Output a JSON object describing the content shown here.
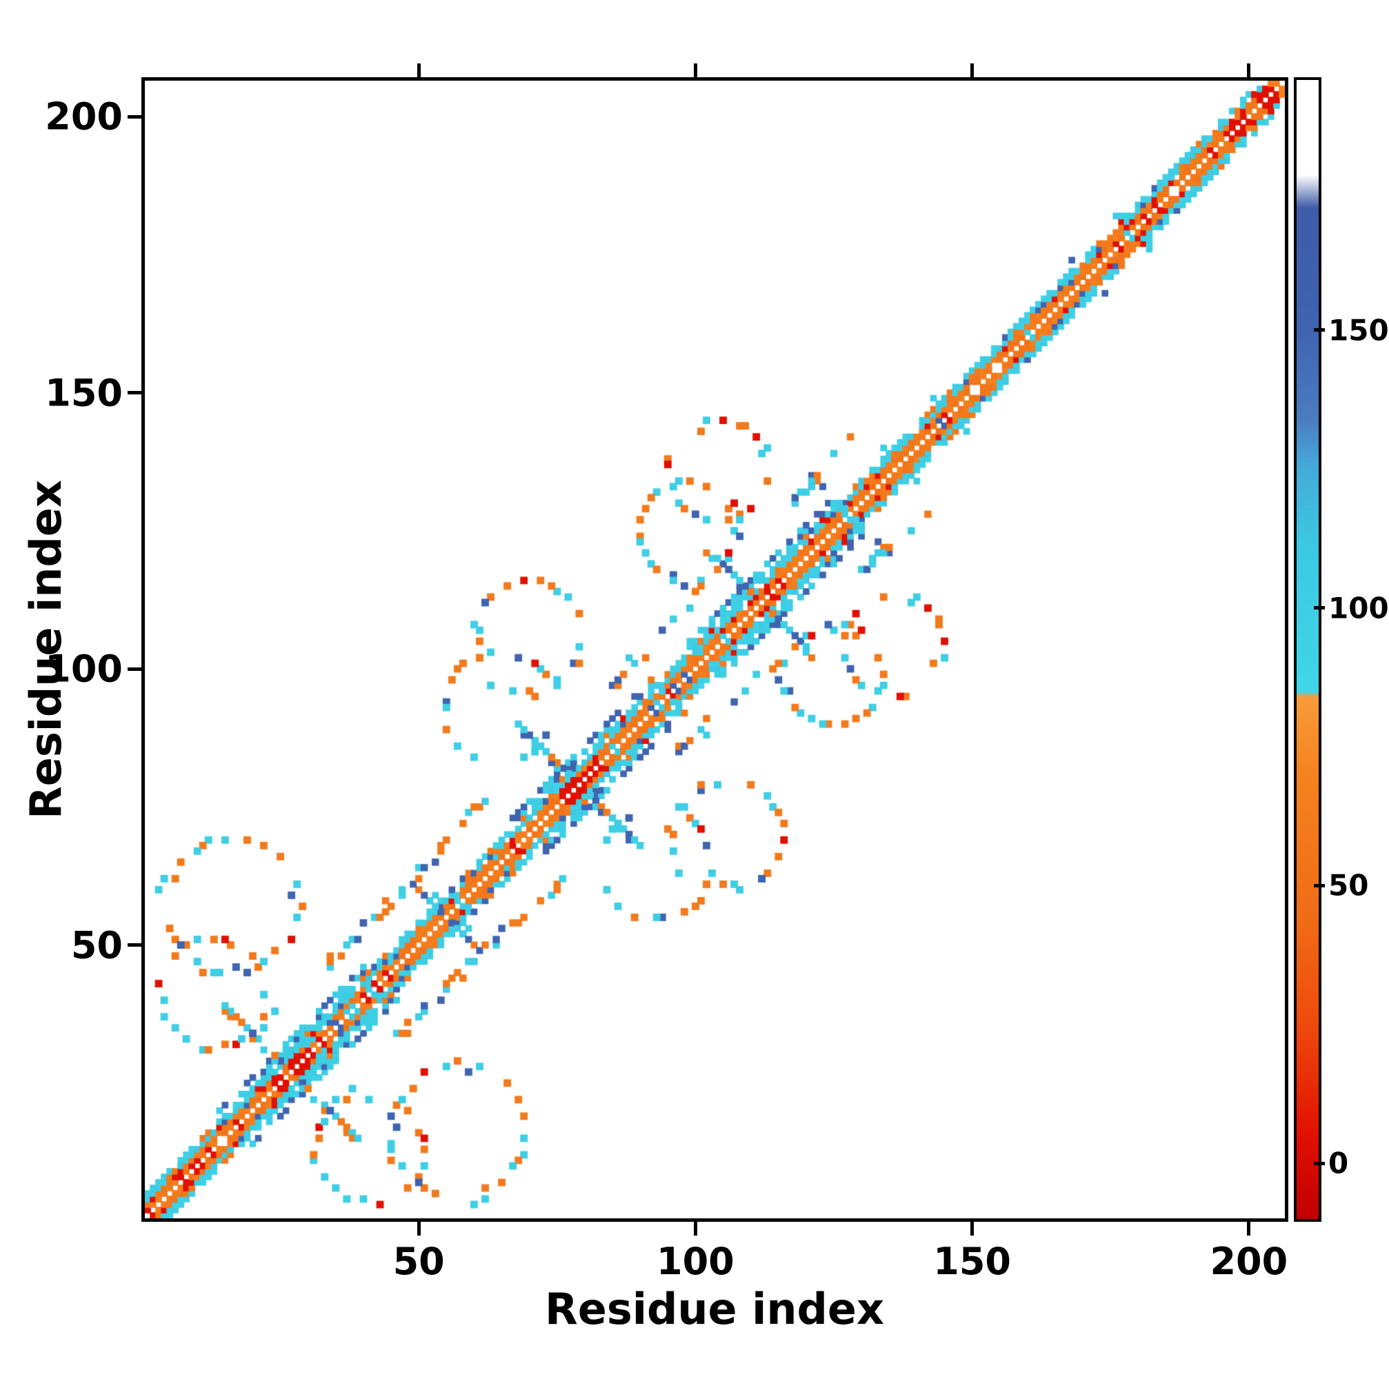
{
  "figure": {
    "background": "#ffffff",
    "frame_color": "#000000"
  },
  "chart_data": {
    "type": "heatmap",
    "subtype": "protein-contact-map",
    "title": "",
    "xlabel": "Residue index",
    "ylabel": "Residue index",
    "n_residues": 206,
    "xlim": [
      1,
      206
    ],
    "ylim": [
      1,
      206
    ],
    "xticks": [
      50,
      100,
      150,
      200
    ],
    "yticks": [
      50,
      100,
      150,
      200
    ],
    "grid": false,
    "symmetric": true,
    "colorbar": {
      "position": "right",
      "ticks": [
        0,
        50,
        100,
        150
      ],
      "vmin": -10,
      "vmax": 195,
      "stops": [
        [
          -10,
          "#c00000"
        ],
        [
          5,
          "#e01000"
        ],
        [
          25,
          "#ee4a0c"
        ],
        [
          45,
          "#f06d17"
        ],
        [
          70,
          "#f5821f"
        ],
        [
          84,
          "#f89b3a"
        ],
        [
          85,
          "#40d6e8"
        ],
        [
          112,
          "#3cc8e2"
        ],
        [
          126,
          "#45a8d8"
        ],
        [
          134,
          "#4b7cc0"
        ],
        [
          150,
          "#3f64b0"
        ],
        [
          172,
          "#3f5ca8"
        ],
        [
          178,
          "#ffffff"
        ],
        [
          195,
          "#ffffff"
        ]
      ]
    },
    "palette": {
      "red": 5,
      "orange": 60,
      "cyan": 100,
      "blue": 150
    },
    "pattern": {
      "seed": 1337,
      "cell_value_weights": {
        "inner": [
          [
            60,
            0.82
          ],
          [
            5,
            0.08
          ],
          [
            100,
            0.07
          ],
          [
            150,
            0.03
          ]
        ],
        "outer": [
          [
            100,
            0.72
          ],
          [
            60,
            0.15
          ],
          [
            150,
            0.1
          ],
          [
            5,
            0.03
          ]
        ],
        "halo": [
          [
            100,
            0.6
          ],
          [
            150,
            0.4
          ]
        ],
        "motif": [
          [
            100,
            0.42
          ],
          [
            60,
            0.34
          ],
          [
            150,
            0.14
          ],
          [
            5,
            0.1
          ]
        ],
        "anti": [
          [
            100,
            0.5
          ],
          [
            60,
            0.28
          ],
          [
            150,
            0.22
          ]
        ],
        "link": [
          [
            60,
            0.5
          ],
          [
            100,
            0.4
          ],
          [
            150,
            0.1
          ]
        ]
      },
      "diagonal": {
        "offsets_inner": [
          1,
          2
        ],
        "offsets_outer": [
          3,
          4
        ],
        "inner_value": 60,
        "outer_value": 100,
        "red_segments": [
          [
            1,
            10
          ],
          [
            24,
            30
          ],
          [
            76,
            82
          ],
          [
            110,
            115
          ],
          [
            176,
            184
          ],
          [
            196,
            204
          ]
        ]
      },
      "motifs": [
        {
          "center": 27,
          "anti": 12,
          "rings": [
            {
              "c": [
                -14,
                14
              ],
              "r": 10
            },
            {
              "c": [
                -11,
                30
              ],
              "r": 12
            }
          ]
        },
        {
          "center": 79,
          "anti": 11,
          "rings": [
            {
              "c": [
                -14,
                14
              ],
              "r": 10
            },
            {
              "c": [
                -9,
                27
              ],
              "r": 10
            }
          ]
        },
        {
          "center": 112,
          "anti": 10,
          "rings": [
            {
              "c": [
                -13,
                13
              ],
              "r": 9
            },
            {
              "c": [
                -8,
                24
              ],
              "r": 9
            }
          ]
        }
      ],
      "crossings": [
        {
          "center": 55,
          "len": 6
        },
        {
          "center": 95,
          "len": 7
        },
        {
          "center": 128,
          "len": 7
        }
      ],
      "links": [
        {
          "from": [
            33,
            46
          ],
          "to": [
            62,
            76
          ]
        },
        {
          "from": [
            85,
            97
          ],
          "to": [
            104,
            118
          ]
        },
        {
          "from": [
            116,
            128
          ],
          "to": [
            130,
            144
          ]
        }
      ]
    }
  }
}
